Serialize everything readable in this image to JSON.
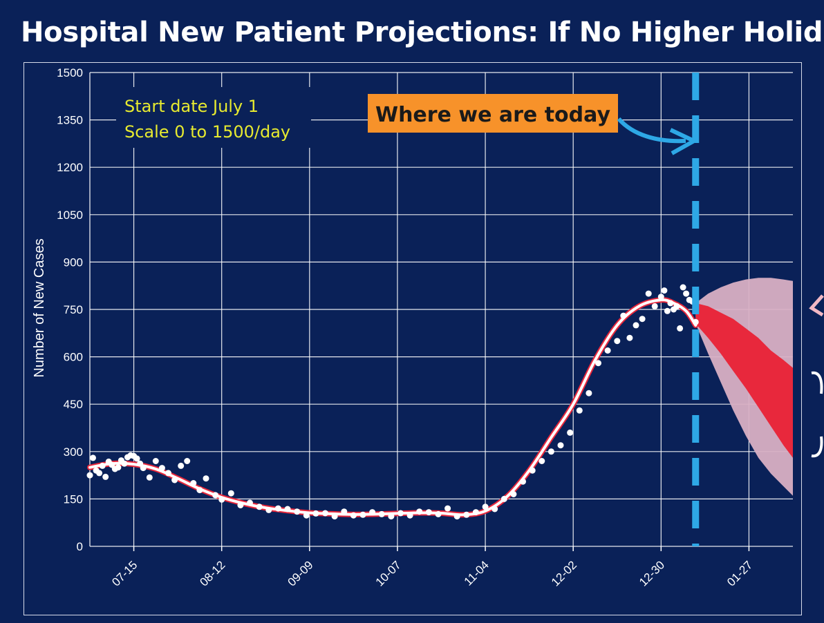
{
  "title": "Hospital New Patient Projections: If No Higher Holida",
  "colors": {
    "background": "#0a2158",
    "grid": "#ffffff",
    "observed_points": "#ffffff",
    "fitted_line": "#ffffff",
    "fitted_line_outline": "#e8283c",
    "inner_band": "#e8283c",
    "outer_band": "#d9b0c4",
    "today_marker": "#2ea8e6",
    "callout_bg": "#f7922a",
    "callout_text": "#1a1a1a",
    "info_text": "#e7ea2f"
  },
  "chart_data": {
    "type": "scatter",
    "title": "",
    "ylabel": "Number of New Cases",
    "xlabel": "",
    "ylim": [
      0,
      1500
    ],
    "yticks": [
      0,
      150,
      300,
      450,
      600,
      750,
      900,
      1050,
      1200,
      1350,
      1500
    ],
    "x_start": "07-01",
    "x_end": "02-10",
    "xticks": [
      "07-15",
      "08-12",
      "09-09",
      "10-07",
      "11-04",
      "12-02",
      "12-30",
      "01-27"
    ],
    "grid": true,
    "annotations": {
      "info_lines": [
        "Start date July 1",
        "Scale 0 to 1500/day"
      ],
      "callout": "Where we are today",
      "today": "01-10"
    },
    "series": [
      {
        "kind": "fitted_line",
        "x": [
          "07-01",
          "07-08",
          "07-15",
          "07-22",
          "07-29",
          "08-05",
          "08-12",
          "08-19",
          "08-26",
          "09-02",
          "09-09",
          "09-16",
          "09-23",
          "09-30",
          "10-07",
          "10-14",
          "10-21",
          "10-28",
          "11-04",
          "11-11",
          "11-18",
          "11-25",
          "12-02",
          "12-09",
          "12-16",
          "12-23",
          "12-30",
          "01-03",
          "01-07",
          "01-10"
        ],
        "y": [
          250,
          262,
          260,
          245,
          215,
          182,
          155,
          136,
          122,
          113,
          106,
          103,
          101,
          102,
          104,
          106,
          105,
          100,
          112,
          158,
          240,
          345,
          450,
          590,
          700,
          760,
          780,
          770,
          745,
          700
        ]
      },
      {
        "kind": "observed_points",
        "x": [
          "07-01",
          "07-02",
          "07-03",
          "07-04",
          "07-05",
          "07-06",
          "07-07",
          "07-08",
          "07-09",
          "07-10",
          "07-11",
          "07-12",
          "07-13",
          "07-14",
          "07-15",
          "07-16",
          "07-17",
          "07-18",
          "07-20",
          "07-22",
          "07-24",
          "07-26",
          "07-28",
          "07-30",
          "08-01",
          "08-03",
          "08-05",
          "08-07",
          "08-10",
          "08-12",
          "08-15",
          "08-18",
          "08-21",
          "08-24",
          "08-27",
          "08-30",
          "09-02",
          "09-05",
          "09-08",
          "09-11",
          "09-14",
          "09-17",
          "09-20",
          "09-23",
          "09-26",
          "09-29",
          "10-02",
          "10-05",
          "10-08",
          "10-11",
          "10-14",
          "10-17",
          "10-20",
          "10-23",
          "10-26",
          "10-29",
          "11-01",
          "11-04",
          "11-07",
          "11-10",
          "11-13",
          "11-16",
          "11-19",
          "11-22",
          "11-25",
          "11-28",
          "12-01",
          "12-04",
          "12-07",
          "12-10",
          "12-13",
          "12-16",
          "12-18",
          "12-20",
          "12-22",
          "12-24",
          "12-26",
          "12-28",
          "12-30",
          "12-31",
          "01-01",
          "01-02",
          "01-03",
          "01-04",
          "01-05",
          "01-06",
          "01-07",
          "01-08",
          "01-09",
          "01-10"
        ],
        "y": [
          225,
          280,
          240,
          232,
          255,
          220,
          268,
          258,
          245,
          250,
          272,
          262,
          282,
          288,
          286,
          278,
          262,
          248,
          218,
          270,
          248,
          232,
          210,
          255,
          270,
          200,
          178,
          215,
          162,
          148,
          168,
          130,
          138,
          125,
          115,
          120,
          118,
          110,
          98,
          104,
          105,
          95,
          110,
          98,
          100,
          108,
          102,
          95,
          105,
          98,
          110,
          108,
          102,
          120,
          95,
          100,
          108,
          125,
          118,
          150,
          165,
          205,
          240,
          270,
          300,
          320,
          360,
          430,
          485,
          580,
          620,
          650,
          730,
          660,
          700,
          720,
          800,
          760,
          790,
          810,
          745,
          770,
          750,
          760,
          690,
          820,
          800,
          780,
          775,
          710
        ]
      },
      {
        "kind": "inner_band",
        "x": [
          "01-10",
          "01-14",
          "01-18",
          "01-22",
          "01-26",
          "01-30",
          "02-03",
          "02-07",
          "02-10"
        ],
        "y_upper": [
          770,
          760,
          740,
          720,
          690,
          660,
          620,
          590,
          565
        ],
        "y_lower": [
          705,
          660,
          610,
          555,
          500,
          440,
          380,
          320,
          280
        ]
      },
      {
        "kind": "outer_band",
        "x": [
          "01-10",
          "01-14",
          "01-18",
          "01-22",
          "01-26",
          "01-30",
          "02-03",
          "02-07",
          "02-10"
        ],
        "y_upper": [
          770,
          800,
          820,
          835,
          845,
          850,
          850,
          845,
          840
        ],
        "y_lower": [
          705,
          610,
          520,
          430,
          350,
          280,
          230,
          190,
          160
        ]
      }
    ]
  }
}
